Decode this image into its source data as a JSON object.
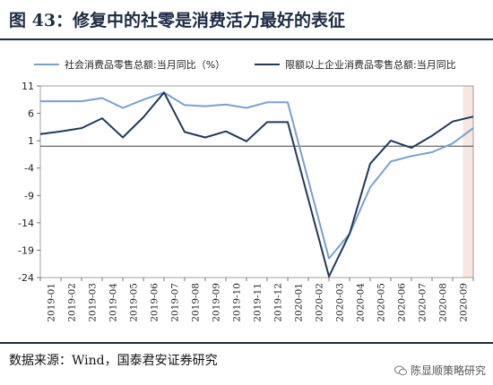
{
  "header": {
    "title": "图 43：修复中的社零是消费活力最好的表征"
  },
  "footer": {
    "source": "数据来源：Wind，国泰君安证券研究",
    "watermark": "陈显顺策略研究"
  },
  "colors": {
    "series1": "#7a9fce",
    "series2": "#1f3a5a",
    "highlight": "#f7e6e2",
    "rule": "#1c2b44"
  },
  "chart_data": {
    "type": "line",
    "categories": [
      "2019-01",
      "2019-02",
      "2019-03",
      "2019-04",
      "2019-05",
      "2019-06",
      "2019-07",
      "2019-08",
      "2019-09",
      "2019-10",
      "2019-11",
      "2019-12",
      "2020-01",
      "2020-02",
      "2020-03",
      "2020-04",
      "2020-05",
      "2020-06",
      "2020-07",
      "2020-08",
      "2020-09",
      ""
    ],
    "x_tick_labels": [
      "2019-01",
      "2019-02",
      "2019-03",
      "2019-04",
      "2019-05",
      "2019-06",
      "2019-07",
      "2019-08",
      "2019-09",
      "2019-10",
      "2019-11",
      "2019-12",
      "2020-01",
      "2020-02",
      "2020-03",
      "2020-04",
      "2020-05",
      "2020-06",
      "2020-07",
      "2020-08",
      "2020-09"
    ],
    "y_ticks": [
      11,
      6,
      1,
      -4,
      -9,
      -14,
      -19,
      -24
    ],
    "ylim": [
      -24,
      11
    ],
    "highlight_category": "2020-09",
    "series": [
      {
        "name": "社会消费品零售总额:当月同比（%）",
        "values": [
          8.2,
          8.2,
          8.2,
          8.8,
          7.0,
          8.5,
          9.8,
          7.5,
          7.3,
          7.6,
          7.0,
          8.0,
          8.0,
          null,
          -20.5,
          -16.0,
          -7.5,
          -2.8,
          -1.8,
          -1.1,
          0.5,
          3.3
        ]
      },
      {
        "name": "限额以上企业消费品零售总额:当月同比",
        "values": [
          2.2,
          2.7,
          3.3,
          5.1,
          1.6,
          5.3,
          9.8,
          2.6,
          1.6,
          2.7,
          0.9,
          4.4,
          4.4,
          null,
          -23.8,
          -16.0,
          -3.2,
          1.0,
          -0.3,
          1.9,
          4.5,
          5.4
        ]
      }
    ]
  }
}
